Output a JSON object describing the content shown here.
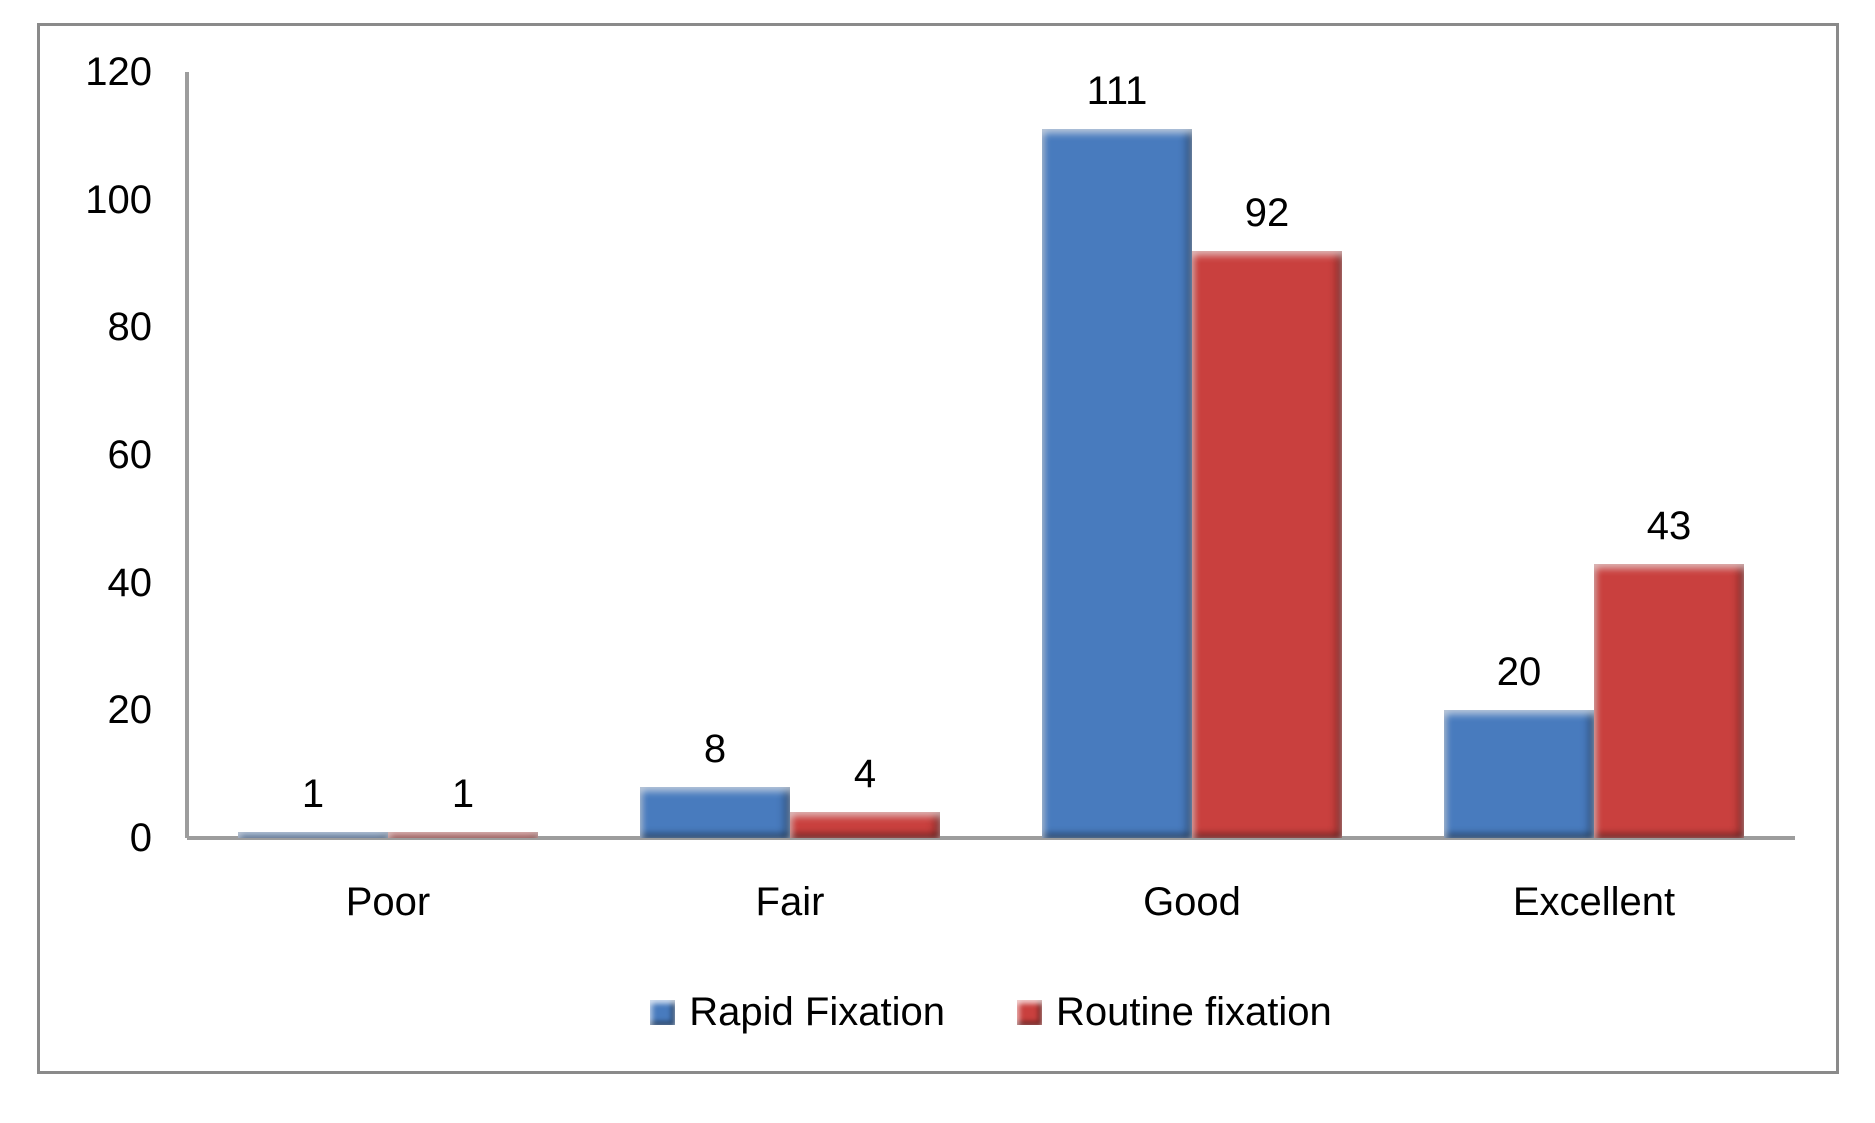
{
  "chart_data": {
    "type": "bar",
    "title": "",
    "xlabel": "",
    "ylabel": "",
    "categories": [
      "Poor",
      "Fair",
      "Good",
      "Excellent"
    ],
    "series": [
      {
        "name": "Rapid Fixation",
        "color": "#487BBE",
        "values": [
          1,
          8,
          111,
          20
        ]
      },
      {
        "name": "Routine fixation",
        "color": "#C9403E",
        "values": [
          1,
          4,
          92,
          43
        ]
      }
    ],
    "ylim": [
      0,
      120
    ],
    "yticks": [
      0,
      20,
      40,
      60,
      80,
      100,
      120
    ],
    "grid": false,
    "data_labels": true,
    "legend_position": "bottom"
  },
  "colors": {
    "axis": "#9d9d9d",
    "frame_border": "#8a8a8a",
    "background": "#ffffff",
    "text": "#000000"
  }
}
